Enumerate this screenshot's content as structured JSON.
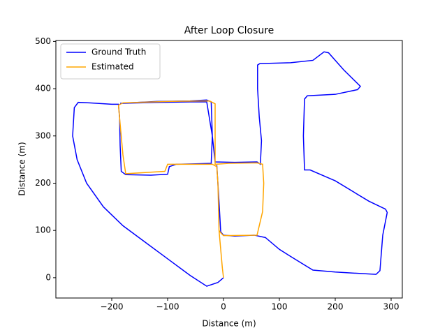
{
  "chart_data": {
    "type": "line",
    "title": "After Loop Closure",
    "x_label": "Distance (m)",
    "y_label": "Distance (m)",
    "xlim": [
      -300,
      320
    ],
    "ylim": [
      -43,
      502
    ],
    "xticks": [
      {
        "value": -200,
        "label": "−200"
      },
      {
        "value": -100,
        "label": "−100"
      },
      0,
      100,
      200,
      300
    ],
    "yticks": [
      0,
      100,
      200,
      300,
      400,
      500
    ],
    "legend": "upper left",
    "series": [
      {
        "name": "Ground Truth",
        "color": "#0000ff",
        "x": [
          0,
          -10,
          -30,
          -60,
          -100,
          -140,
          -180,
          -215,
          -245,
          -262,
          -270,
          -267,
          -260,
          -240,
          -200,
          -188,
          -186,
          -185,
          -183,
          -175,
          -130,
          -100,
          -97,
          -85,
          -50,
          -22,
          -20,
          -22,
          -30,
          -60,
          -120,
          -185,
          -180,
          -120,
          -60,
          -30,
          -20,
          -15,
          20,
          60,
          66,
          68,
          64,
          61,
          61,
          65,
          120,
          160,
          180,
          188,
          215,
          245,
          240,
          200,
          150,
          145,
          143,
          145,
          155,
          200,
          260,
          290,
          293,
          285,
          280,
          273,
          200,
          160,
          120,
          100,
          75,
          55,
          20,
          0,
          -5,
          -8,
          -12
        ],
        "values": [
          0,
          -10,
          -18,
          5,
          40,
          75,
          110,
          150,
          200,
          250,
          300,
          360,
          371,
          370,
          367,
          367,
          340,
          280,
          225,
          218,
          217,
          219,
          235,
          240,
          241,
          242,
          300,
          372,
          376,
          374,
          373,
          369,
          369,
          371,
          372,
          372,
          300,
          245,
          244,
          245,
          240,
          290,
          340,
          400,
          450,
          453,
          455,
          460,
          478,
          476,
          440,
          405,
          398,
          388,
          385,
          378,
          300,
          228,
          228,
          205,
          162,
          145,
          138,
          90,
          15,
          7,
          12,
          16,
          45,
          60,
          85,
          90,
          88,
          90,
          97,
          160,
          238
        ]
      },
      {
        "name": "Estimated",
        "color": "#ffa500",
        "x": [
          0,
          -2,
          -8,
          -10,
          -12,
          -20,
          -100,
          -105,
          -175,
          -180,
          -188,
          -180,
          -100,
          -25,
          -15,
          -15,
          10,
          60,
          70,
          72,
          70,
          60,
          0,
          -5,
          -8
        ],
        "values": [
          0,
          20,
          100,
          200,
          235,
          240,
          240,
          225,
          220,
          260,
          365,
          370,
          373,
          374,
          368,
          240,
          242,
          243,
          240,
          200,
          140,
          90,
          89,
          95,
          100
        ]
      }
    ]
  }
}
